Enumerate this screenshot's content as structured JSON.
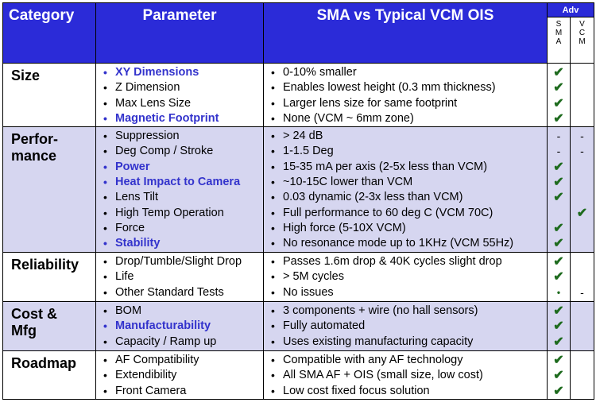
{
  "headers": {
    "category": "Category",
    "parameter": "Parameter",
    "comparison": "SMA vs Typical VCM OIS",
    "adv": "Adv",
    "sma_letters": [
      "S",
      "M",
      "A"
    ],
    "vcm_letters": [
      "V",
      "C",
      "M"
    ]
  },
  "colors": {
    "header_bg": "#2b2bd8",
    "highlight_text": "#3333cc",
    "band": "#d6d6f0",
    "check": "#1e6b1e"
  },
  "rows": [
    {
      "category": [
        "Size"
      ],
      "params": [
        {
          "text": "XY Dimensions",
          "highlight": true
        },
        {
          "text": "Z Dimension",
          "highlight": false
        },
        {
          "text": "Max Lens Size",
          "highlight": false
        },
        {
          "text": "Magnetic Footprint",
          "highlight": true
        }
      ],
      "values": [
        "0-10% smaller",
        "Enables lowest height (0.3 mm thickness)",
        "Larger lens size for same footprint",
        "None (VCM ~ 6mm zone)"
      ],
      "sma": [
        "✔",
        "✔",
        "✔",
        "✔"
      ],
      "vcm": [
        "",
        "",
        "",
        ""
      ]
    },
    {
      "category": [
        "Perfor-",
        "mance"
      ],
      "params": [
        {
          "text": "Suppression",
          "highlight": false
        },
        {
          "text": "Deg Comp / Stroke",
          "highlight": false
        },
        {
          "text": "Power",
          "highlight": true
        },
        {
          "text": "Heat Impact to Camera",
          "highlight": true
        },
        {
          "text": "Lens Tilt",
          "highlight": false
        },
        {
          "text": "High Temp Operation",
          "highlight": false
        },
        {
          "text": "Force",
          "highlight": false
        },
        {
          "text": "Stability",
          "highlight": true
        }
      ],
      "values": [
        "> 24 dB",
        "1-1.5 Deg",
        "15-35 mA per axis (2-5x less than VCM)",
        "~10-15C lower than VCM",
        "0.03 dynamic (2-3x less than VCM)",
        "Full performance to 60 deg C (VCM 70C)",
        "High force (5-10X VCM)",
        "No resonance mode up to 1KHz (VCM 55Hz)"
      ],
      "sma": [
        "-",
        "-",
        "✔",
        "✔",
        "✔",
        "",
        "✔",
        "✔"
      ],
      "vcm": [
        "-",
        "-",
        "",
        "",
        "",
        "✔",
        "",
        ""
      ]
    },
    {
      "category": [
        "Reliability"
      ],
      "params": [
        {
          "text": "Drop/Tumble/Slight Drop",
          "highlight": false
        },
        {
          "text": "Life",
          "highlight": false
        },
        {
          "text": "Other Standard Tests",
          "highlight": false
        }
      ],
      "values": [
        "Passes 1.6m drop & 40K cycles slight drop",
        "> 5M cycles",
        "No issues"
      ],
      "sma": [
        "✔",
        "✔",
        "•"
      ],
      "vcm": [
        "",
        "",
        "-"
      ]
    },
    {
      "category": [
        "Cost &",
        "Mfg"
      ],
      "params": [
        {
          "text": "BOM",
          "highlight": false
        },
        {
          "text": "Manufacturability",
          "highlight": true
        },
        {
          "text": "Capacity / Ramp up",
          "highlight": false
        }
      ],
      "values": [
        "3 components + wire (no hall sensors)",
        "Fully automated",
        "Uses existing manufacturing capacity"
      ],
      "sma": [
        "✔",
        "✔",
        "✔"
      ],
      "vcm": [
        "",
        "",
        ""
      ]
    },
    {
      "category": [
        "Roadmap"
      ],
      "params": [
        {
          "text": "AF Compatibility",
          "highlight": false
        },
        {
          "text": "Extendibility",
          "highlight": false
        },
        {
          "text": "Front Camera",
          "highlight": false
        }
      ],
      "values": [
        "Compatible with any AF technology",
        "All SMA AF + OIS (small size, low cost)",
        "Low cost fixed focus solution"
      ],
      "sma": [
        "✔",
        "✔",
        "✔"
      ],
      "vcm": [
        "",
        "",
        ""
      ]
    }
  ]
}
